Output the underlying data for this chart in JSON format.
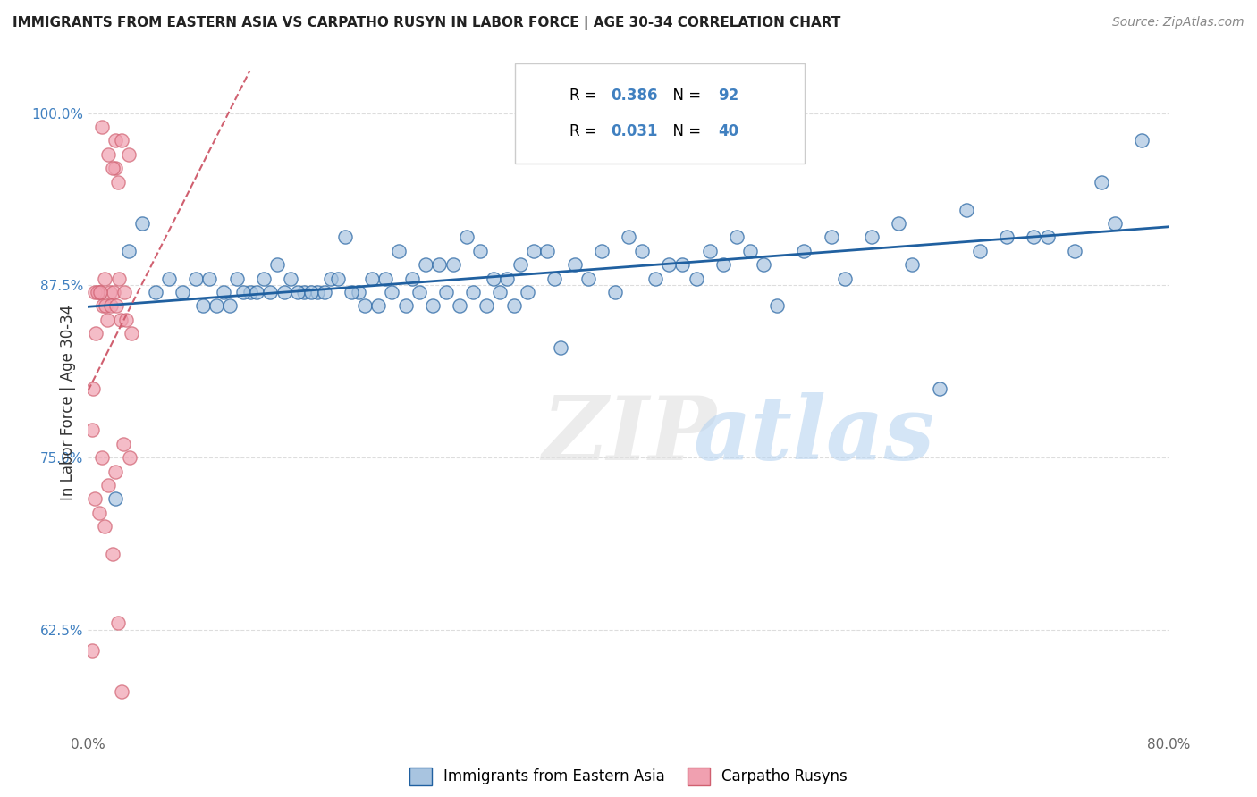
{
  "title": "IMMIGRANTS FROM EASTERN ASIA VS CARPATHO RUSYN IN LABOR FORCE | AGE 30-34 CORRELATION CHART",
  "source": "Source: ZipAtlas.com",
  "ylabel": "In Labor Force | Age 30-34",
  "xlim": [
    0.0,
    0.8
  ],
  "ylim": [
    0.55,
    1.03
  ],
  "yticks": [
    0.625,
    0.75,
    0.875,
    1.0
  ],
  "ytick_labels": [
    "62.5%",
    "75.0%",
    "87.5%",
    "100.0%"
  ],
  "blue_R": 0.386,
  "blue_N": 92,
  "pink_R": 0.031,
  "pink_N": 40,
  "blue_color": "#a8c4e0",
  "blue_line_color": "#2060a0",
  "pink_color": "#f0a0b0",
  "pink_line_color": "#d06070",
  "legend_color": "#4080c0",
  "background_color": "#ffffff",
  "grid_color": "#dddddd",
  "blue_scatter_x": [
    0.05,
    0.08,
    0.35,
    0.19,
    0.22,
    0.25,
    0.23,
    0.28,
    0.17,
    0.21,
    0.27,
    0.3,
    0.32,
    0.29,
    0.18,
    0.2,
    0.24,
    0.26,
    0.33,
    0.31,
    0.15,
    0.16,
    0.14,
    0.13,
    0.12,
    0.11,
    0.1,
    0.09,
    0.07,
    0.06,
    0.34,
    0.36,
    0.4,
    0.38,
    0.42,
    0.44,
    0.46,
    0.48,
    0.5,
    0.55,
    0.6,
    0.65,
    0.7,
    0.75,
    0.45,
    0.43,
    0.41,
    0.39,
    0.37,
    0.53,
    0.58,
    0.63,
    0.68,
    0.73,
    0.78,
    0.47,
    0.49,
    0.51,
    0.56,
    0.61,
    0.66,
    0.71,
    0.76,
    0.04,
    0.03,
    0.02,
    0.085,
    0.095,
    0.105,
    0.115,
    0.125,
    0.135,
    0.145,
    0.155,
    0.165,
    0.175,
    0.185,
    0.195,
    0.205,
    0.215,
    0.225,
    0.235,
    0.245,
    0.255,
    0.265,
    0.275,
    0.285,
    0.295,
    0.305,
    0.315,
    0.325,
    0.345
  ],
  "blue_scatter_y": [
    0.87,
    0.88,
    0.83,
    0.91,
    0.88,
    0.89,
    0.9,
    0.91,
    0.87,
    0.88,
    0.89,
    0.88,
    0.89,
    0.9,
    0.88,
    0.87,
    0.88,
    0.89,
    0.9,
    0.88,
    0.88,
    0.87,
    0.89,
    0.88,
    0.87,
    0.88,
    0.87,
    0.88,
    0.87,
    0.88,
    0.9,
    0.89,
    0.91,
    0.9,
    0.88,
    0.89,
    0.9,
    0.91,
    0.89,
    0.91,
    0.92,
    0.93,
    0.91,
    0.95,
    0.88,
    0.89,
    0.9,
    0.87,
    0.88,
    0.9,
    0.91,
    0.8,
    0.91,
    0.9,
    0.98,
    0.89,
    0.9,
    0.86,
    0.88,
    0.89,
    0.9,
    0.91,
    0.92,
    0.92,
    0.9,
    0.72,
    0.86,
    0.86,
    0.86,
    0.87,
    0.87,
    0.87,
    0.87,
    0.87,
    0.87,
    0.87,
    0.88,
    0.87,
    0.86,
    0.86,
    0.87,
    0.86,
    0.87,
    0.86,
    0.87,
    0.86,
    0.87,
    0.86,
    0.87,
    0.86,
    0.87,
    0.88
  ],
  "pink_scatter_x": [
    0.01,
    0.02,
    0.015,
    0.025,
    0.03,
    0.02,
    0.018,
    0.022,
    0.012,
    0.008,
    0.016,
    0.019,
    0.023,
    0.027,
    0.005,
    0.007,
    0.009,
    0.011,
    0.013,
    0.017,
    0.021,
    0.024,
    0.028,
    0.032,
    0.014,
    0.006,
    0.004,
    0.003,
    0.026,
    0.031,
    0.01,
    0.02,
    0.015,
    0.005,
    0.008,
    0.012,
    0.018,
    0.022,
    0.003,
    0.025
  ],
  "pink_scatter_y": [
    0.99,
    0.98,
    0.97,
    0.98,
    0.97,
    0.96,
    0.96,
    0.95,
    0.88,
    0.87,
    0.87,
    0.87,
    0.88,
    0.87,
    0.87,
    0.87,
    0.87,
    0.86,
    0.86,
    0.86,
    0.86,
    0.85,
    0.85,
    0.84,
    0.85,
    0.84,
    0.8,
    0.77,
    0.76,
    0.75,
    0.75,
    0.74,
    0.73,
    0.72,
    0.71,
    0.7,
    0.68,
    0.63,
    0.61,
    0.58
  ]
}
